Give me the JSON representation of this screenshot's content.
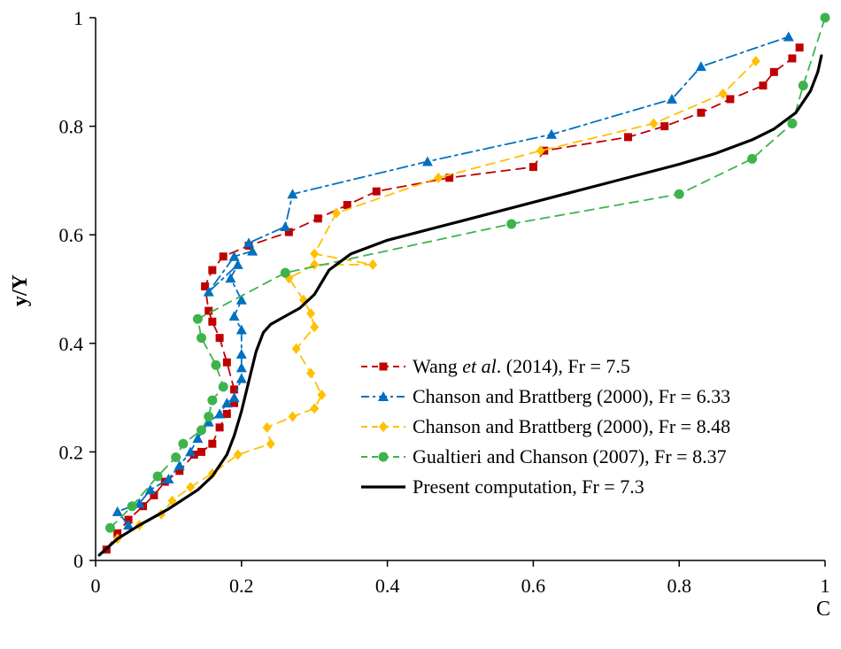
{
  "chart_data": {
    "type": "scatter",
    "xlabel": "C",
    "ylabel": "y/Y",
    "xlim": [
      0,
      1
    ],
    "ylim": [
      0,
      1
    ],
    "x_ticks": [
      "0",
      "0.2",
      "0.4",
      "0.6",
      "0.8",
      "1"
    ],
    "y_ticks": [
      "0",
      "0.2",
      "0.4",
      "0.6",
      "0.8",
      "1"
    ],
    "grid": false,
    "legend_position": "bottom-right",
    "series": [
      {
        "name_parts": [
          "Wang ",
          "et al",
          ". (2014), Fr = 7.5"
        ],
        "name_italic": [
          false,
          true,
          false
        ],
        "color": "#C00000",
        "marker": "square",
        "dash": "10,7",
        "x": [
          0.015,
          0.03,
          0.045,
          0.065,
          0.08,
          0.095,
          0.115,
          0.135,
          0.145,
          0.16,
          0.17,
          0.18,
          0.19,
          0.19,
          0.18,
          0.17,
          0.16,
          0.155,
          0.15,
          0.16,
          0.175,
          0.21,
          0.265,
          0.305,
          0.345,
          0.385,
          0.485,
          0.6,
          0.615,
          0.73,
          0.78,
          0.83,
          0.87,
          0.915,
          0.93,
          0.955,
          0.965
        ],
        "y": [
          0.02,
          0.05,
          0.075,
          0.1,
          0.12,
          0.145,
          0.165,
          0.195,
          0.2,
          0.215,
          0.245,
          0.27,
          0.29,
          0.315,
          0.365,
          0.41,
          0.44,
          0.46,
          0.505,
          0.535,
          0.56,
          0.58,
          0.605,
          0.63,
          0.655,
          0.68,
          0.705,
          0.725,
          0.755,
          0.78,
          0.8,
          0.825,
          0.85,
          0.875,
          0.9,
          0.925,
          0.945
        ]
      },
      {
        "name_parts": [
          "Chanson and Brattberg (2000), Fr = 6.33"
        ],
        "name_italic": [
          false
        ],
        "color": "#0070C0",
        "marker": "triangle",
        "dash": "12,5,3,5",
        "x": [
          0.045,
          0.03,
          0.06,
          0.075,
          0.1,
          0.115,
          0.13,
          0.14,
          0.155,
          0.17,
          0.18,
          0.19,
          0.2,
          0.2,
          0.2,
          0.2,
          0.19,
          0.2,
          0.185,
          0.195,
          0.155,
          0.19,
          0.215,
          0.21,
          0.26,
          0.27,
          0.455,
          0.625,
          0.79,
          0.83,
          0.95
        ],
        "y": [
          0.065,
          0.09,
          0.105,
          0.13,
          0.15,
          0.175,
          0.2,
          0.225,
          0.255,
          0.27,
          0.29,
          0.3,
          0.335,
          0.355,
          0.38,
          0.425,
          0.45,
          0.48,
          0.52,
          0.545,
          0.495,
          0.56,
          0.57,
          0.585,
          0.615,
          0.675,
          0.735,
          0.785,
          0.85,
          0.91,
          0.965
        ]
      },
      {
        "name_parts": [
          "Chanson and Brattberg (2000), Fr = 8.48"
        ],
        "name_italic": [
          false
        ],
        "color": "#FFC000",
        "marker": "diamond",
        "dash": "10,7",
        "x": [
          0.03,
          0.06,
          0.09,
          0.105,
          0.13,
          0.16,
          0.195,
          0.24,
          0.235,
          0.27,
          0.3,
          0.31,
          0.295,
          0.275,
          0.3,
          0.295,
          0.285,
          0.265,
          0.3,
          0.38,
          0.3,
          0.33,
          0.47,
          0.61,
          0.765,
          0.86,
          0.905
        ],
        "y": [
          0.04,
          0.065,
          0.085,
          0.11,
          0.135,
          0.16,
          0.195,
          0.215,
          0.245,
          0.265,
          0.28,
          0.305,
          0.345,
          0.39,
          0.43,
          0.455,
          0.48,
          0.52,
          0.545,
          0.545,
          0.565,
          0.64,
          0.705,
          0.755,
          0.805,
          0.86,
          0.92
        ]
      },
      {
        "name_parts": [
          "Gualtieri and Chanson (2007), Fr = 8.37"
        ],
        "name_italic": [
          false
        ],
        "color": "#3CB44B",
        "marker": "circle",
        "dash": "10,7",
        "x": [
          0.02,
          0.05,
          0.085,
          0.11,
          0.12,
          0.145,
          0.155,
          0.16,
          0.175,
          0.165,
          0.145,
          0.14,
          0.26,
          0.57,
          0.8,
          0.9,
          0.955,
          0.97,
          1.0
        ],
        "y": [
          0.06,
          0.1,
          0.155,
          0.19,
          0.215,
          0.24,
          0.265,
          0.295,
          0.32,
          0.36,
          0.41,
          0.445,
          0.53,
          0.62,
          0.675,
          0.74,
          0.805,
          0.875,
          1.0
        ]
      },
      {
        "name_parts": [
          "Present computation, Fr = 7.3"
        ],
        "name_italic": [
          false
        ],
        "color": "#000000",
        "marker": "none",
        "dash": "",
        "x": [
          0.005,
          0.03,
          0.06,
          0.1,
          0.14,
          0.16,
          0.18,
          0.19,
          0.2,
          0.21,
          0.22,
          0.23,
          0.24,
          0.26,
          0.28,
          0.3,
          0.32,
          0.35,
          0.4,
          0.5,
          0.6,
          0.7,
          0.8,
          0.85,
          0.9,
          0.93,
          0.96,
          0.98,
          0.99,
          0.995
        ],
        "y": [
          0.01,
          0.04,
          0.065,
          0.095,
          0.13,
          0.155,
          0.195,
          0.23,
          0.275,
          0.33,
          0.385,
          0.42,
          0.435,
          0.45,
          0.465,
          0.49,
          0.535,
          0.565,
          0.59,
          0.625,
          0.66,
          0.695,
          0.73,
          0.75,
          0.775,
          0.795,
          0.825,
          0.865,
          0.9,
          0.93
        ]
      }
    ]
  }
}
